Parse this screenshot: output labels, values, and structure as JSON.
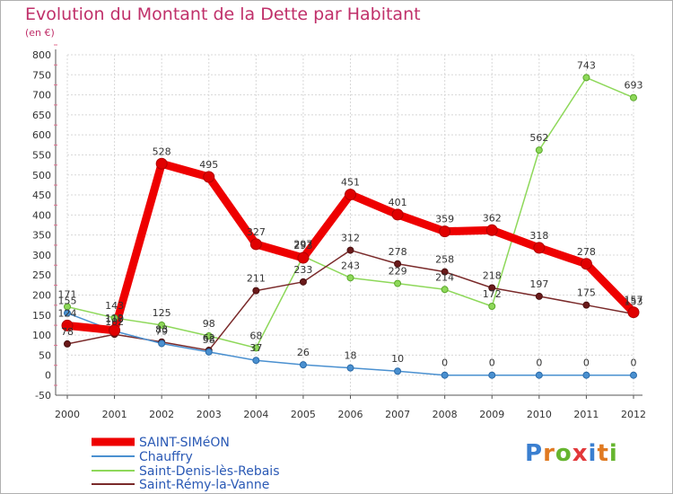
{
  "title": "Evolution du Montant de la Dette par Habitant",
  "unit": "(en €)",
  "logo": {
    "text": "Proxiti",
    "letter_colors": [
      "#3a7fd0",
      "#e07a22",
      "#66b52f",
      "#e2383a",
      "#3a7fd0",
      "#e07a22",
      "#66b52f"
    ]
  },
  "chart_data": {
    "type": "line",
    "title": "Evolution du Montant de la Dette par Habitant",
    "ylabel": "(en €)",
    "xlabel": "",
    "x": [
      "2000",
      "2001",
      "2002",
      "2003",
      "2004",
      "2005",
      "2006",
      "2007",
      "2008",
      "2009",
      "2010",
      "2011",
      "2012"
    ],
    "ylim": [
      -50,
      800
    ],
    "yticks": [
      -50,
      0,
      50,
      100,
      150,
      200,
      250,
      300,
      350,
      400,
      450,
      500,
      550,
      600,
      650,
      700,
      750,
      800
    ],
    "grid": true,
    "legend_position": "bottom-left",
    "series": [
      {
        "name": "SAINT-SIMéON",
        "color": "#ee0000",
        "values": [
          124,
          112,
          528,
          495,
          327,
          293,
          451,
          401,
          359,
          362,
          318,
          278,
          157
        ]
      },
      {
        "name": "Chauffry",
        "color": "#4a90d0",
        "values": [
          155,
          110,
          79,
          58,
          37,
          26,
          18,
          10,
          0,
          0,
          0,
          0,
          0
        ]
      },
      {
        "name": "Saint-Denis-lès-Rebais",
        "color": "#8ed85a",
        "values": [
          171,
          143,
          125,
          98,
          68,
          297,
          243,
          229,
          214,
          172,
          562,
          743,
          693
        ]
      },
      {
        "name": "Saint-Rémy-la-Vanne",
        "color": "#7a2a2a",
        "values": [
          78,
          102,
          83,
          62,
          211,
          233,
          312,
          278,
          258,
          218,
          197,
          175,
          153
        ]
      }
    ]
  }
}
